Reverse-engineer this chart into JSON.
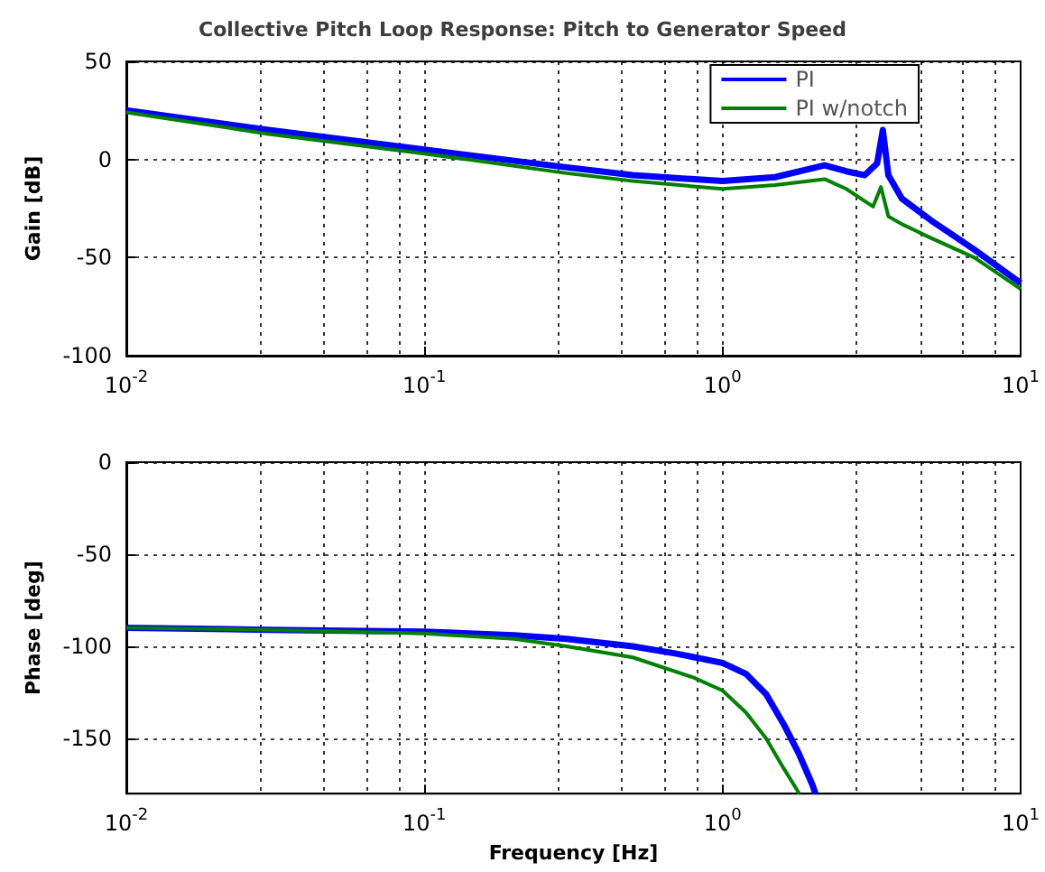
{
  "chart_data": [
    {
      "type": "line",
      "title": "Collective Pitch Loop Response: Pitch to Generator Speed",
      "ylabel": "Gain [dB]",
      "log": "x",
      "grid": true,
      "legend": "top right",
      "line_style": "solid",
      "marker": "none",
      "xlim": [
        0.01,
        10
      ],
      "xticks": [
        {
          "value": 0.01,
          "label": "10$^{-2}$"
        },
        {
          "value": 0.1,
          "label": "10$^{-1}$"
        },
        {
          "value": 1,
          "label": "10$^{0}$"
        },
        {
          "value": 10,
          "label": "10$^{1}$"
        }
      ],
      "ylim": [
        -100,
        50
      ],
      "yticks": [
        -100,
        -50,
        0,
        50
      ],
      "series": [
        {
          "name": "PI",
          "color": "#0000ff",
          "x": [
            0.01,
            0.03,
            0.1,
            0.3,
            0.5,
            1,
            1.5,
            2.2,
            2.6,
            3,
            3.3,
            3.45,
            3.6,
            4,
            5,
            7,
            10
          ],
          "values": [
            25,
            15,
            5,
            -4,
            -8,
            -11,
            -9,
            -3,
            -6,
            -8,
            -2,
            15,
            -8,
            -20,
            -31,
            -46,
            -63
          ]
        },
        {
          "name": "PI w/notch",
          "color": "#008000",
          "x": [
            0.01,
            0.03,
            0.1,
            0.3,
            0.5,
            1,
            1.5,
            2.2,
            2.6,
            3.2,
            3.4,
            3.6,
            4,
            5,
            7,
            10
          ],
          "values": [
            24,
            13,
            3,
            -7,
            -11,
            -15,
            -13,
            -10,
            -15,
            -24,
            -14,
            -29,
            -33,
            -40,
            -50,
            -66
          ]
        }
      ]
    },
    {
      "type": "line",
      "xlabel": "Frequency [Hz]",
      "ylabel": "Phase [deg]",
      "log": "x",
      "grid": true,
      "line_style": "solid",
      "marker": "none",
      "xlim": [
        0.01,
        10
      ],
      "xticks": [
        {
          "value": 0.01,
          "label": "10$^{-2}$"
        },
        {
          "value": 0.1,
          "label": "10$^{-1}$"
        },
        {
          "value": 1,
          "label": "10$^{0}$"
        },
        {
          "value": 10,
          "label": "10$^{1}$"
        }
      ],
      "ylim": [
        -180,
        0
      ],
      "yticks": [
        -150,
        -100,
        -50,
        0
      ],
      "series": [
        {
          "color": "#0000ff",
          "x": [
            0.01,
            0.03,
            0.1,
            0.2,
            0.3,
            0.5,
            0.7,
            1,
            1.2,
            1.4,
            1.6,
            1.8,
            2,
            2.05
          ],
          "values": [
            -90,
            -91,
            -92,
            -94,
            -96,
            -100,
            -104,
            -109,
            -115,
            -126,
            -142,
            -158,
            -175,
            -180
          ]
        },
        {
          "color": "#008000",
          "x": [
            0.01,
            0.03,
            0.1,
            0.2,
            0.3,
            0.5,
            0.8,
            1,
            1.2,
            1.4,
            1.6,
            1.81
          ],
          "values": [
            -90,
            -91,
            -93,
            -96,
            -100,
            -106,
            -117,
            -124,
            -136,
            -150,
            -166,
            -180
          ]
        }
      ]
    }
  ]
}
